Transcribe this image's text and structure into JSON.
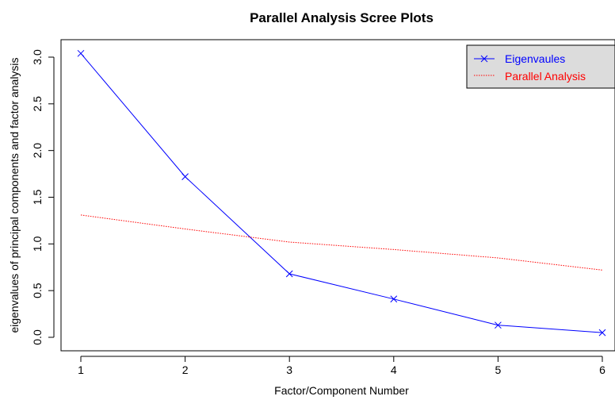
{
  "chart_data": {
    "type": "line",
    "title": "Parallel Analysis Scree Plots",
    "xlabel": "Factor/Component Number",
    "ylabel": "eigenvalues of principal components and factor analysis",
    "x": [
      1,
      2,
      3,
      4,
      5,
      6
    ],
    "xlim": [
      1,
      6
    ],
    "ylim": [
      0,
      3.0
    ],
    "xticks": [
      "1",
      "2",
      "3",
      "4",
      "5",
      "6"
    ],
    "yticks": [
      "0.0",
      "0.5",
      "1.0",
      "1.5",
      "2.0",
      "2.5",
      "3.0"
    ],
    "series": [
      {
        "name": "Eigenvaules",
        "values": [
          3.04,
          1.72,
          0.68,
          0.41,
          0.13,
          0.05
        ],
        "color": "#0000ff",
        "marker": "x",
        "style": "solid"
      },
      {
        "name": "Parallel Analysis",
        "values": [
          1.31,
          1.16,
          1.02,
          0.94,
          0.85,
          0.72
        ],
        "color": "#ff0000",
        "marker": "none",
        "style": "dotted"
      }
    ],
    "legend_position": "top-right",
    "grid": false
  }
}
